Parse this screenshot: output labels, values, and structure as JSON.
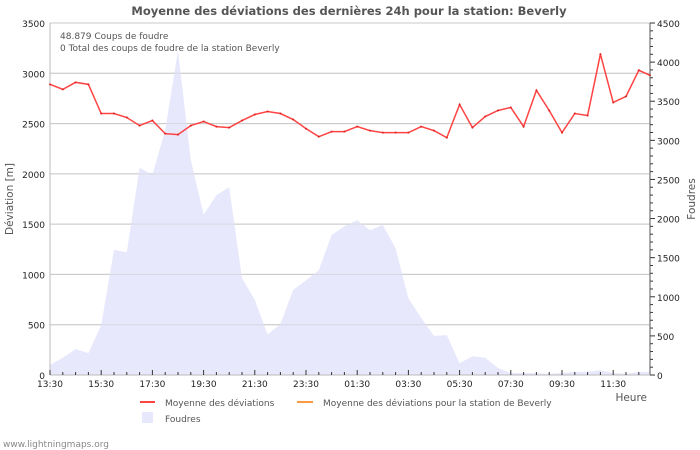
{
  "chart_data": {
    "type": "line",
    "title": "Moyenne des déviations des dernières 24h pour la station: Beverly",
    "xlabel": "Heure",
    "ylabel": "Déviation  [m]",
    "y2label": "Foudres",
    "ylim": [
      0,
      3500
    ],
    "y2lim": [
      0,
      4500
    ],
    "yticks": [
      0,
      500,
      1000,
      1500,
      2000,
      2500,
      3000,
      3500
    ],
    "y2ticks": [
      0,
      500,
      1000,
      1500,
      2000,
      2500,
      3000,
      3500,
      4000,
      4500
    ],
    "xticks": [
      "13:30",
      "15:30",
      "17:30",
      "19:30",
      "21:30",
      "23:30",
      "01:30",
      "03:30",
      "05:30",
      "07:30",
      "09:30",
      "11:30"
    ],
    "grid": true,
    "annotations": [
      "48.879  Coups de foudre",
      "0 Total des coups de foudre de la station Beverly"
    ],
    "x_step_minutes": 30,
    "series": [
      {
        "name": "Moyenne des déviations",
        "color": "#ff4444",
        "axis": "left",
        "type": "line",
        "values": [
          2890,
          2840,
          2910,
          2890,
          2600,
          2600,
          2560,
          2480,
          2530,
          2400,
          2390,
          2480,
          2520,
          2470,
          2460,
          2530,
          2590,
          2620,
          2600,
          2540,
          2450,
          2370,
          2420,
          2420,
          2470,
          2430,
          2410,
          2410,
          2410,
          2470,
          2430,
          2360,
          2690,
          2460,
          2570,
          2630,
          2660,
          2470,
          2830,
          2630,
          2410,
          2600,
          2580,
          3190,
          2710,
          2770,
          3030,
          2980
        ]
      },
      {
        "name": "Moyenne des déviations pour la station de Beverly",
        "color": "#ff9944",
        "axis": "left",
        "type": "line",
        "values": []
      },
      {
        "name": "Foudres",
        "color": "#e8e8fc",
        "axis": "right",
        "type": "area",
        "values": [
          130,
          220,
          330,
          280,
          640,
          1600,
          1570,
          2650,
          2560,
          3130,
          4150,
          2750,
          2050,
          2300,
          2400,
          1240,
          960,
          520,
          650,
          1090,
          1210,
          1340,
          1790,
          1900,
          1980,
          1850,
          1920,
          1620,
          980,
          730,
          500,
          510,
          150,
          240,
          220,
          90,
          25,
          25,
          25,
          15,
          25,
          40,
          40,
          60,
          25,
          15,
          40,
          40
        ]
      }
    ]
  },
  "footer": "www.lightningmaps.org"
}
